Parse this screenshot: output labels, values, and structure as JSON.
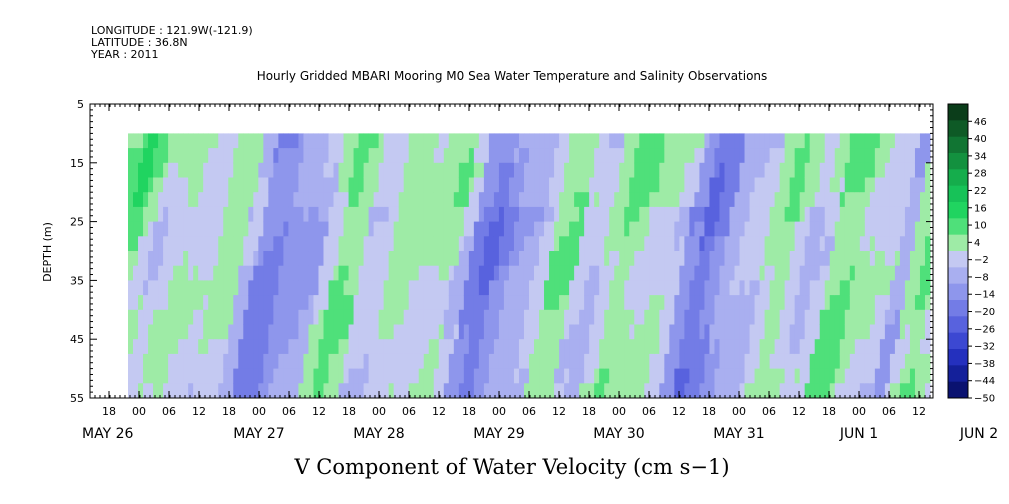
{
  "header": {
    "longitude": "LONGITUDE : 121.9W(-121.9)",
    "latitude": "LATITUDE : 36.8N",
    "year": "YEAR : 2011"
  },
  "chart_data": {
    "type": "heatmap",
    "title": "Hourly Gridded MBARI Mooring M0 Sea Water Temperature and Salinity Observations",
    "xlabel": "V Component of Water Velocity (cm s−1)",
    "ylabel": "DEPTH (m)",
    "ylim": [
      55,
      5
    ],
    "yticks": [
      "5",
      "15",
      "25",
      "35",
      "45",
      "55"
    ],
    "x_hour_ticks": [
      "18",
      "00",
      "06",
      "12",
      "18",
      "00",
      "06",
      "12",
      "18",
      "00",
      "06",
      "12",
      "18",
      "00",
      "06",
      "12",
      "18",
      "00",
      "06",
      "12",
      "18",
      "00",
      "06",
      "12",
      "18",
      "00",
      "06",
      "12"
    ],
    "x_day_labels": [
      "MAY 26",
      "MAY 27",
      "MAY 28",
      "MAY 29",
      "MAY 30",
      "MAY 31",
      "JUN  1",
      "JUN  2"
    ],
    "colorbar": {
      "labels": [
        "46",
        "40",
        "34",
        "28",
        "22",
        "16",
        "10",
        "4",
        "-2",
        "-8",
        "-14",
        "-20",
        "-26",
        "-32",
        "-38",
        "-44",
        "-50"
      ],
      "range": [
        -50,
        52
      ],
      "colors": [
        "#0b3d1a",
        "#0e5a26",
        "#117533",
        "#13913f",
        "#15ad4c",
        "#17c258",
        "#20d460",
        "#4fe07a",
        "#9eeba6",
        "#c4c9f2",
        "#a9aff0",
        "#8e96ec",
        "#737ce6",
        "#5862de",
        "#3c48d2",
        "#2430be",
        "#14209a",
        "#0a1270"
      ]
    },
    "data_extent": {
      "start": "MAY 26 20:00",
      "end": "JUN 2 16:00",
      "depth_top": 10,
      "depth_bottom": 55
    },
    "grid": false
  }
}
